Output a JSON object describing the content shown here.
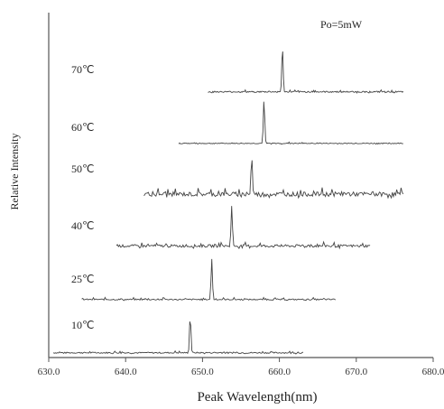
{
  "chart_data": {
    "type": "line",
    "title": "",
    "annotation": "Po=5mW",
    "xlabel": "Peak Wavelength(nm)",
    "ylabel": "Relative Intensity",
    "xlim": [
      630.0,
      680.0
    ],
    "x_ticks": [
      "630.0",
      "640.0",
      "650.0",
      "660.0",
      "670.0",
      "680.0"
    ],
    "grid": false,
    "line_color": "#444444",
    "series": [
      {
        "label": "10℃",
        "x_range": [
          630.6,
          663.1
        ],
        "peak_x": 648.4,
        "peak_height": 0.9,
        "noise": 0.03
      },
      {
        "label": "25℃",
        "x_range": [
          634.3,
          667.3
        ],
        "peak_x": 651.2,
        "peak_height": 0.95,
        "noise": 0.03
      },
      {
        "label": "40℃",
        "x_range": [
          638.8,
          671.8
        ],
        "peak_x": 653.8,
        "peak_height": 0.95,
        "noise": 0.06
      },
      {
        "label": "50℃",
        "x_range": [
          642.4,
          676.1
        ],
        "peak_x": 656.4,
        "peak_height": 0.85,
        "noise": 0.1
      },
      {
        "label": "60℃",
        "x_range": [
          646.9,
          676.1
        ],
        "peak_x": 658.0,
        "peak_height": 1.0,
        "noise": 0.02
      },
      {
        "label": "70℃",
        "x_range": [
          650.7,
          676.1
        ],
        "peak_x": 660.4,
        "peak_height": 1.0,
        "noise": 0.03
      }
    ]
  }
}
